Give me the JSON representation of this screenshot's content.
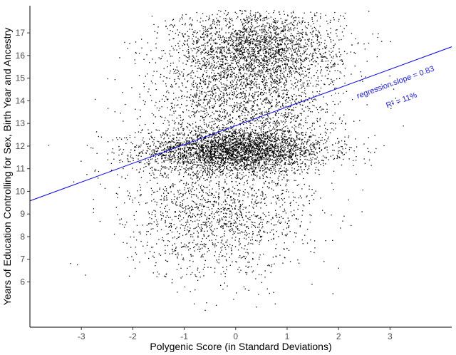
{
  "chart_data": {
    "type": "scatter",
    "xlabel": "Polygenic Score (in Standard Deviations)",
    "ylabel": "Years of Education Controlling for Sex, Birth Year and Ancestry",
    "xlim": [
      -4.0,
      4.2
    ],
    "ylim": [
      4.0,
      18.2
    ],
    "x_ticks": [
      -3,
      -2,
      -1,
      0,
      1,
      2,
      3
    ],
    "y_ticks": [
      6,
      7,
      8,
      9,
      10,
      11,
      12,
      13,
      14,
      15,
      16,
      17
    ],
    "regression": {
      "slope": 0.83,
      "intercept": 12.9,
      "color": "#0000ff",
      "label_slope": "regression slope = 0.83",
      "label_r2": "R² = 11%"
    },
    "point_color": "#000000",
    "n_points_approx": 9000,
    "clusters": [
      {
        "x_mean": 0.0,
        "x_sd": 0.9,
        "y_mean": 11.8,
        "y_sd": 0.5,
        "weight": 0.38
      },
      {
        "x_mean": 0.4,
        "x_sd": 0.8,
        "y_mean": 16.3,
        "y_sd": 0.9,
        "weight": 0.27
      },
      {
        "x_mean": 0.2,
        "x_sd": 0.9,
        "y_mean": 14.0,
        "y_sd": 1.0,
        "weight": 0.17
      },
      {
        "x_mean": -0.3,
        "x_sd": 0.9,
        "y_mean": 9.0,
        "y_sd": 1.4,
        "weight": 0.18
      }
    ],
    "grid": false,
    "legend": "none"
  }
}
